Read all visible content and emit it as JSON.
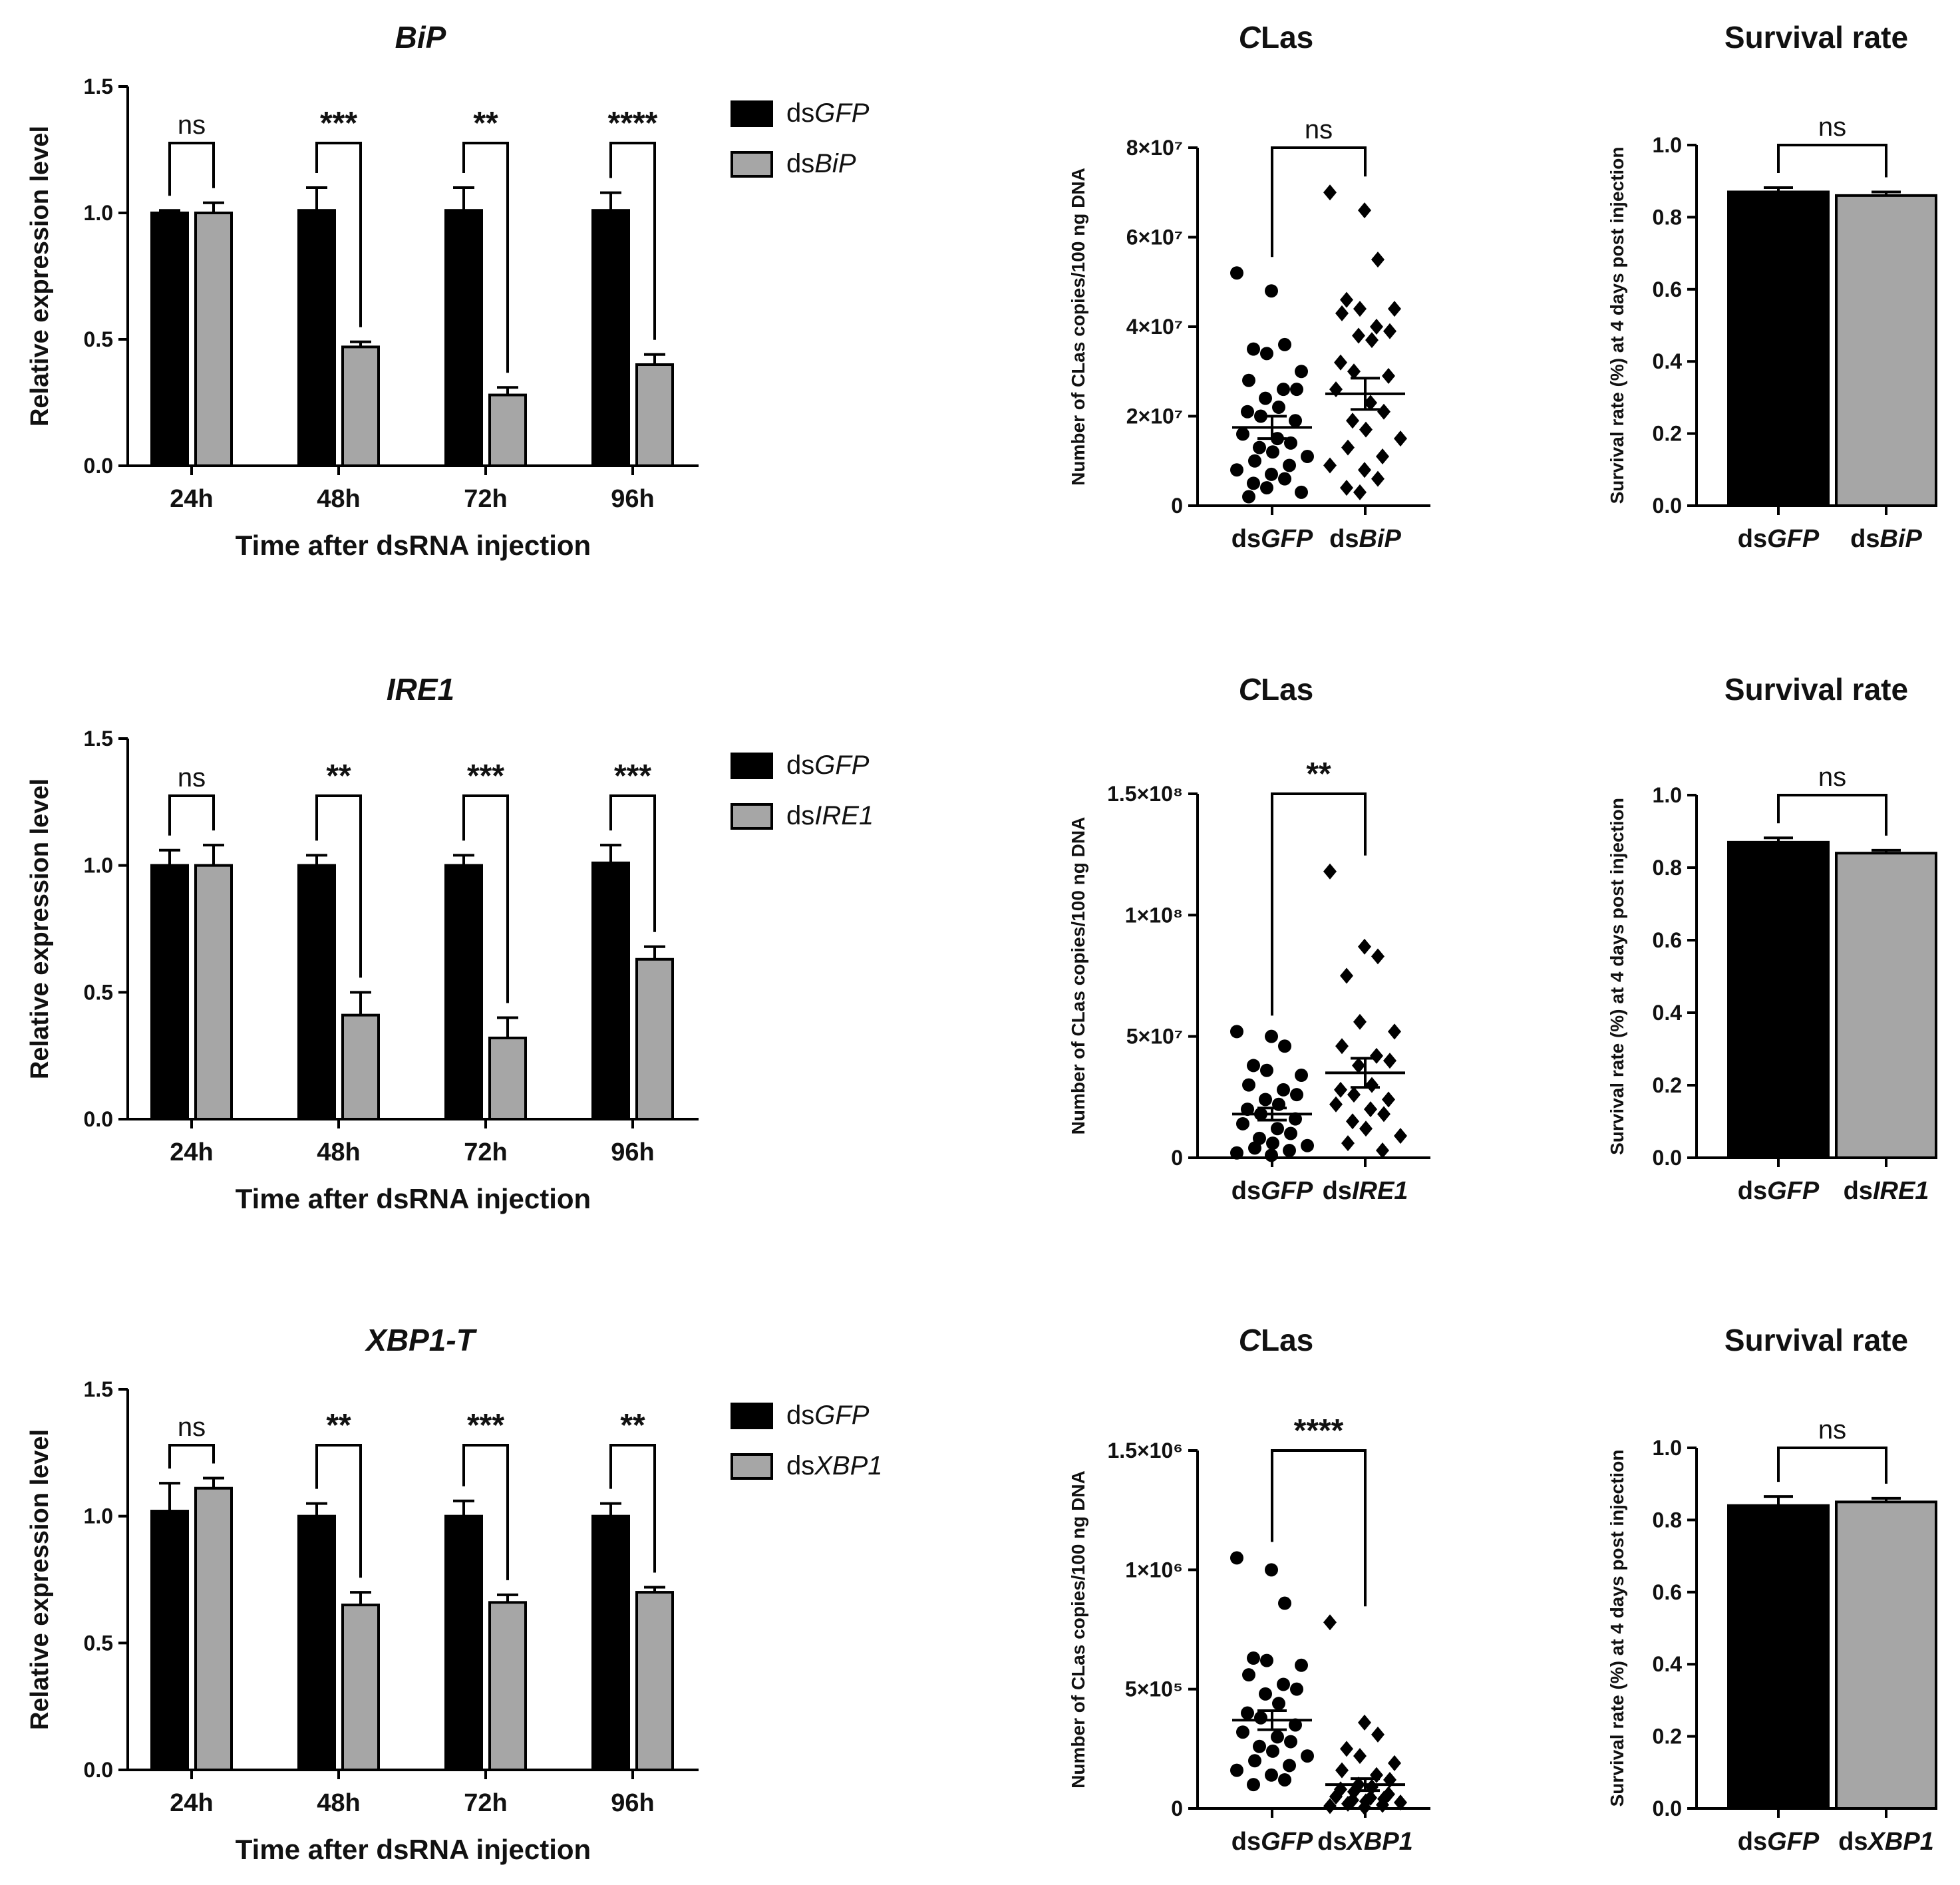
{
  "colors": {
    "dsGFP": "#000000",
    "knockdown": "#a6a6a6",
    "outline": "#000000"
  },
  "chart_data": [
    {
      "id": "bip-expression",
      "type": "bar",
      "title": "BiP",
      "title_italic": true,
      "xlabel": "Time after dsRNA injection",
      "ylabel": "Relative expression level",
      "ylim": [
        0,
        1.5
      ],
      "yticks": [
        "0.0",
        "0.5",
        "1.0",
        "1.5"
      ],
      "categories": [
        "24h",
        "48h",
        "72h",
        "96h"
      ],
      "legend_position": "right",
      "series": [
        {
          "name_plain": "ds",
          "name_italic": "GFP",
          "color": "dsGFP",
          "values": [
            1.0,
            1.01,
            1.01,
            1.01
          ],
          "errors": [
            0.01,
            0.09,
            0.09,
            0.07
          ]
        },
        {
          "name_plain": "ds",
          "name_italic": "BiP",
          "color": "knockdown",
          "values": [
            1.0,
            0.47,
            0.28,
            0.4
          ],
          "errors": [
            0.04,
            0.02,
            0.03,
            0.04
          ]
        }
      ],
      "significance": [
        "ns",
        "***",
        "**",
        "****"
      ]
    },
    {
      "id": "bip-clas",
      "type": "scatter",
      "title_italic": "C",
      "title_plain": "Las",
      "ylabel": "Number of CLas copies/100 ng DNA",
      "ylim": [
        0,
        80000000
      ],
      "ytick_values": [
        0,
        20000000,
        40000000,
        60000000,
        80000000
      ],
      "yticks": [
        "0",
        "2×10⁷",
        "4×10⁷",
        "6×10⁷",
        "8×10⁷"
      ],
      "groups": [
        {
          "label_plain": "ds",
          "label_italic": "GFP",
          "marker": "circle",
          "mean": 17500000,
          "sem": 2500000,
          "points": [
            52000000,
            48000000,
            36000000,
            35000000,
            34000000,
            30000000,
            28000000,
            26000000,
            26000000,
            24000000,
            22000000,
            21000000,
            20000000,
            19000000,
            16000000,
            15000000,
            14000000,
            13000000,
            12000000,
            11000000,
            10000000,
            9000000,
            8000000,
            7000000,
            6000000,
            5000000,
            4000000,
            3000000,
            2000000
          ]
        },
        {
          "label_plain": "ds",
          "label_italic": "BiP",
          "marker": "diamond",
          "mean": 25000000,
          "sem": 3500000,
          "points": [
            70000000,
            66000000,
            55000000,
            46000000,
            44000000,
            44000000,
            43000000,
            40000000,
            39000000,
            38000000,
            37000000,
            32000000,
            30000000,
            29000000,
            26000000,
            23000000,
            21000000,
            19000000,
            17000000,
            15000000,
            13000000,
            11000000,
            9000000,
            8000000,
            6000000,
            4000000,
            3000000
          ]
        }
      ],
      "significance": "ns"
    },
    {
      "id": "bip-survival",
      "type": "bar",
      "title": "Survival rate",
      "ylabel": "Survival rate (%) at 4 days post injection",
      "ylim": [
        0,
        1.0
      ],
      "yticks": [
        "0.0",
        "0.2",
        "0.4",
        "0.6",
        "0.8",
        "1.0"
      ],
      "groups": [
        {
          "label_plain": "ds",
          "label_italic": "GFP",
          "color": "dsGFP",
          "value": 0.87,
          "error": 0.012
        },
        {
          "label_plain": "ds",
          "label_italic": "BiP",
          "color": "knockdown",
          "value": 0.86,
          "error": 0.01
        }
      ],
      "significance": "ns"
    },
    {
      "id": "ire1-expression",
      "type": "bar",
      "title": "IRE1",
      "title_italic": true,
      "xlabel": "Time after dsRNA injection",
      "ylabel": "Relative expression level",
      "ylim": [
        0,
        1.5
      ],
      "yticks": [
        "0.0",
        "0.5",
        "1.0",
        "1.5"
      ],
      "categories": [
        "24h",
        "48h",
        "72h",
        "96h"
      ],
      "legend_position": "right",
      "series": [
        {
          "name_plain": "ds",
          "name_italic": "GFP",
          "color": "dsGFP",
          "values": [
            1.0,
            1.0,
            1.0,
            1.01
          ],
          "errors": [
            0.06,
            0.04,
            0.04,
            0.07
          ]
        },
        {
          "name_plain": "ds",
          "name_italic": "IRE1",
          "color": "knockdown",
          "values": [
            1.0,
            0.41,
            0.32,
            0.63
          ],
          "errors": [
            0.08,
            0.09,
            0.08,
            0.05
          ]
        }
      ],
      "significance": [
        "ns",
        "**",
        "***",
        "***"
      ]
    },
    {
      "id": "ire1-clas",
      "type": "scatter",
      "title_italic": "C",
      "title_plain": "Las",
      "ylabel": "Number of CLas copies/100 ng DNA",
      "ylim": [
        0,
        150000000
      ],
      "ytick_values": [
        0,
        50000000,
        100000000,
        150000000
      ],
      "yticks": [
        "0",
        "5×10⁷",
        "1×10⁸",
        "1.5×10⁸"
      ],
      "groups": [
        {
          "label_plain": "ds",
          "label_italic": "GFP",
          "marker": "circle",
          "mean": 18000000,
          "sem": 2500000,
          "points": [
            52000000,
            50000000,
            46000000,
            38000000,
            36000000,
            34000000,
            30000000,
            28000000,
            26000000,
            24000000,
            22000000,
            20000000,
            18000000,
            16000000,
            14000000,
            12000000,
            10000000,
            8000000,
            6000000,
            5000000,
            4000000,
            3000000,
            2000000,
            1000000
          ]
        },
        {
          "label_plain": "ds",
          "label_italic": "IRE1",
          "marker": "diamond",
          "mean": 35000000,
          "sem": 6000000,
          "points": [
            118000000,
            87000000,
            83000000,
            75000000,
            56000000,
            52000000,
            46000000,
            42000000,
            40000000,
            38000000,
            30000000,
            28000000,
            26000000,
            24000000,
            22000000,
            20000000,
            18000000,
            15000000,
            12000000,
            9000000,
            6000000,
            3000000
          ]
        }
      ],
      "significance": "**"
    },
    {
      "id": "ire1-survival",
      "type": "bar",
      "title": "Survival rate",
      "ylabel": "Survival rate (%) at 4 days post injection",
      "ylim": [
        0,
        1.0
      ],
      "yticks": [
        "0.0",
        "0.2",
        "0.4",
        "0.6",
        "0.8",
        "1.0"
      ],
      "groups": [
        {
          "label_plain": "ds",
          "label_italic": "GFP",
          "color": "dsGFP",
          "value": 0.87,
          "error": 0.012
        },
        {
          "label_plain": "ds",
          "label_italic": "IRE1",
          "color": "knockdown",
          "value": 0.84,
          "error": 0.008
        }
      ],
      "significance": "ns"
    },
    {
      "id": "xbp1-expression",
      "type": "bar",
      "title": "XBP1-T",
      "title_italic": true,
      "xlabel": "Time after dsRNA injection",
      "ylabel": "Relative expression level",
      "ylim": [
        0,
        1.5
      ],
      "yticks": [
        "0.0",
        "0.5",
        "1.0",
        "1.5"
      ],
      "categories": [
        "24h",
        "48h",
        "72h",
        "96h"
      ],
      "legend_position": "right",
      "series": [
        {
          "name_plain": "ds",
          "name_italic": "GFP",
          "color": "dsGFP",
          "values": [
            1.02,
            1.0,
            1.0,
            1.0
          ],
          "errors": [
            0.11,
            0.05,
            0.06,
            0.05
          ]
        },
        {
          "name_plain": "ds",
          "name_italic": "XBP1",
          "color": "knockdown",
          "values": [
            1.11,
            0.65,
            0.66,
            0.7
          ],
          "errors": [
            0.04,
            0.05,
            0.03,
            0.02
          ]
        }
      ],
      "significance": [
        "ns",
        "**",
        "***",
        "**"
      ]
    },
    {
      "id": "xbp1-clas",
      "type": "scatter",
      "title_italic": "C",
      "title_plain": "Las",
      "ylabel": "Number of CLas copies/100 ng DNA",
      "ylim": [
        0,
        1500000
      ],
      "ytick_values": [
        0,
        500000,
        1000000,
        1500000
      ],
      "yticks": [
        "0",
        "5×10⁵",
        "1×10⁶",
        "1.5×10⁶"
      ],
      "groups": [
        {
          "label_plain": "ds",
          "label_italic": "GFP",
          "marker": "circle",
          "mean": 370000,
          "sem": 40000,
          "points": [
            1050000,
            1000000,
            860000,
            630000,
            620000,
            600000,
            560000,
            520000,
            500000,
            480000,
            440000,
            400000,
            380000,
            350000,
            320000,
            300000,
            280000,
            260000,
            240000,
            220000,
            200000,
            180000,
            160000,
            140000,
            120000,
            100000
          ]
        },
        {
          "label_plain": "ds",
          "label_italic": "XBP1",
          "marker": "diamond",
          "mean": 100000,
          "sem": 25000,
          "points": [
            780000,
            360000,
            310000,
            250000,
            220000,
            190000,
            160000,
            140000,
            120000,
            100000,
            90000,
            80000,
            70000,
            60000,
            50000,
            45000,
            40000,
            35000,
            30000,
            25000,
            20000,
            15000,
            10000,
            5000
          ]
        }
      ],
      "significance": "****"
    },
    {
      "id": "xbp1-survival",
      "type": "bar",
      "title": "Survival rate",
      "ylabel": "Survival rate (%) at 4 days post injection",
      "ylim": [
        0,
        1.0
      ],
      "yticks": [
        "0.0",
        "0.2",
        "0.4",
        "0.6",
        "0.8",
        "1.0"
      ],
      "groups": [
        {
          "label_plain": "ds",
          "label_italic": "GFP",
          "color": "dsGFP",
          "value": 0.84,
          "error": 0.025
        },
        {
          "label_plain": "ds",
          "label_italic": "XBP1",
          "color": "knockdown",
          "value": 0.85,
          "error": 0.01
        }
      ],
      "significance": "ns"
    }
  ]
}
